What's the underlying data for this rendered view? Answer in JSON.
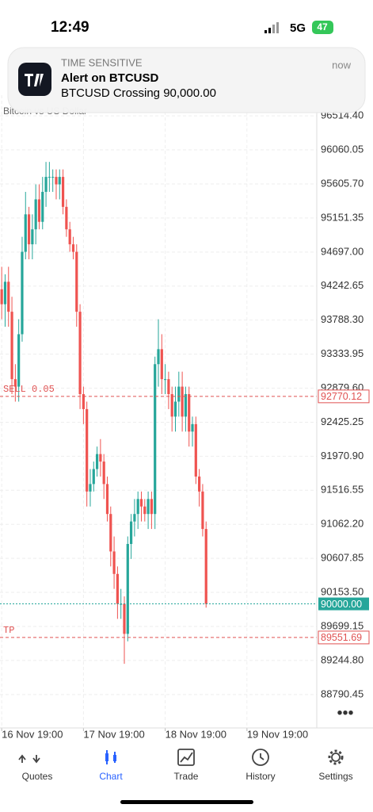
{
  "status_bar": {
    "time": "12:49",
    "network": "5G",
    "battery": "47"
  },
  "notification": {
    "category": "TIME SENSITIVE",
    "title": "Alert on BTCUSD",
    "body": "BTCUSD Crossing 90,000.00",
    "time": "now"
  },
  "chart_data": {
    "type": "candlestick",
    "subtitle": "Bitcoin vs US Dollar",
    "x": [
      0,
      1,
      2,
      3,
      4,
      5,
      6,
      7,
      8,
      9,
      10,
      11,
      12,
      13,
      14,
      15,
      16,
      17,
      18,
      19,
      20,
      21,
      22,
      23,
      24,
      25,
      26,
      27,
      28,
      29,
      30,
      31,
      32,
      33,
      34,
      35,
      36,
      37,
      38,
      39,
      40,
      41,
      42,
      43,
      44,
      45,
      46,
      47,
      48,
      49,
      50,
      51,
      52,
      53,
      54,
      55,
      56,
      57,
      58,
      59,
      60
    ],
    "open": [
      94200,
      94000,
      94300,
      93900,
      93000,
      92900,
      93600,
      94700,
      95200,
      94800,
      95000,
      95400,
      95100,
      95500,
      95700,
      95700,
      95700,
      95600,
      95700,
      95300,
      95000,
      94800,
      94700,
      93900,
      92800,
      92600,
      91500,
      91600,
      91800,
      92000,
      91900,
      91600,
      91200,
      90700,
      90400,
      90000,
      90000,
      89600,
      90800,
      91100,
      91200,
      91400,
      91300,
      91200,
      91400,
      91200,
      93200,
      93400,
      93000,
      93000,
      92800,
      92500,
      92700,
      92900,
      92500,
      92800,
      92300,
      92400,
      91700,
      91500,
      91000
    ],
    "high": [
      94500,
      94400,
      94500,
      94100,
      93200,
      93800,
      94900,
      95500,
      95300,
      95200,
      95600,
      95600,
      95700,
      95900,
      95900,
      95800,
      95800,
      95800,
      95800,
      95400,
      95100,
      94900,
      94800,
      94000,
      92900,
      92700,
      91800,
      91900,
      92100,
      92200,
      92000,
      91700,
      91300,
      90900,
      90500,
      90200,
      90100,
      90900,
      91200,
      91400,
      91500,
      91500,
      91400,
      91500,
      91500,
      93300,
      93800,
      93600,
      93200,
      93100,
      92900,
      92900,
      93100,
      93100,
      92900,
      92900,
      92500,
      92500,
      91800,
      91600,
      91100
    ],
    "low": [
      93800,
      93700,
      93700,
      92800,
      92700,
      92700,
      93500,
      94600,
      94600,
      94600,
      94800,
      95000,
      95000,
      95300,
      95500,
      95500,
      95400,
      95400,
      95200,
      94900,
      94700,
      94600,
      93700,
      92600,
      92400,
      91300,
      91300,
      91500,
      91700,
      91700,
      91400,
      91100,
      90500,
      90200,
      89800,
      89800,
      89200,
      89500,
      90600,
      90900,
      91000,
      91100,
      91100,
      91000,
      91000,
      91000,
      92900,
      92800,
      92800,
      92600,
      92300,
      92300,
      92500,
      92300,
      92300,
      92100,
      92100,
      91600,
      91300,
      90900,
      89950
    ],
    "close": [
      94000,
      94300,
      93900,
      93000,
      92900,
      93600,
      94700,
      95200,
      94800,
      95000,
      95400,
      95100,
      95500,
      95700,
      95700,
      95700,
      95600,
      95700,
      95300,
      95000,
      94800,
      94700,
      93900,
      92800,
      92600,
      91500,
      91600,
      91800,
      92000,
      91900,
      91600,
      91200,
      90700,
      90400,
      90000,
      90000,
      89600,
      90800,
      91100,
      91200,
      91400,
      91300,
      91200,
      91400,
      91200,
      93200,
      93400,
      93000,
      93000,
      92800,
      92500,
      92700,
      92900,
      92500,
      92800,
      92300,
      92400,
      91700,
      91500,
      91000,
      90000
    ],
    "up_color": "#26a69a",
    "down_color": "#ef5350",
    "xlim": [
      -0.5,
      92.5
    ],
    "xticks": [
      {
        "value": 0,
        "label": "16 Nov 19:00"
      },
      {
        "value": 24,
        "label": "17 Nov 19:00"
      },
      {
        "value": 48,
        "label": "18 Nov 19:00"
      },
      {
        "value": 72,
        "label": "19 Nov 19:00"
      }
    ],
    "ylim": [
      88344,
      96791
    ],
    "yticks": [
      {
        "value": 96514.4,
        "label": "96514.40"
      },
      96060.05,
      {
        "value": 95605.7,
        "label": "95605.70"
      },
      95151.35,
      {
        "value": 94697,
        "label": "94697.00"
      },
      94242.65,
      {
        "value": 93788.3,
        "label": "93788.30"
      },
      93333.95,
      {
        "value": 92879.6,
        "label": "92879.60"
      },
      92425.25,
      {
        "value": 91970.9,
        "label": "91970.90"
      },
      91516.55,
      {
        "value": 91062.2,
        "label": "91062.20"
      },
      90607.85,
      {
        "value": 90153.5,
        "label": "90153.50"
      },
      89699.15,
      {
        "value": 89244.8,
        "label": "89244.80"
      },
      88790.45
    ],
    "grid": true,
    "order_lines": [
      {
        "name": "SELL 0.05",
        "price": 92770.12,
        "color": "#e05252"
      },
      {
        "name": "TP",
        "price": 89551.69,
        "color": "#e05252"
      }
    ],
    "last_price": {
      "value": 90000,
      "label": "90000.00",
      "color": "#26a69a"
    }
  },
  "tab_bar": {
    "tabs": [
      "Quotes",
      "Chart",
      "Trade",
      "History",
      "Settings"
    ],
    "active": 1
  }
}
